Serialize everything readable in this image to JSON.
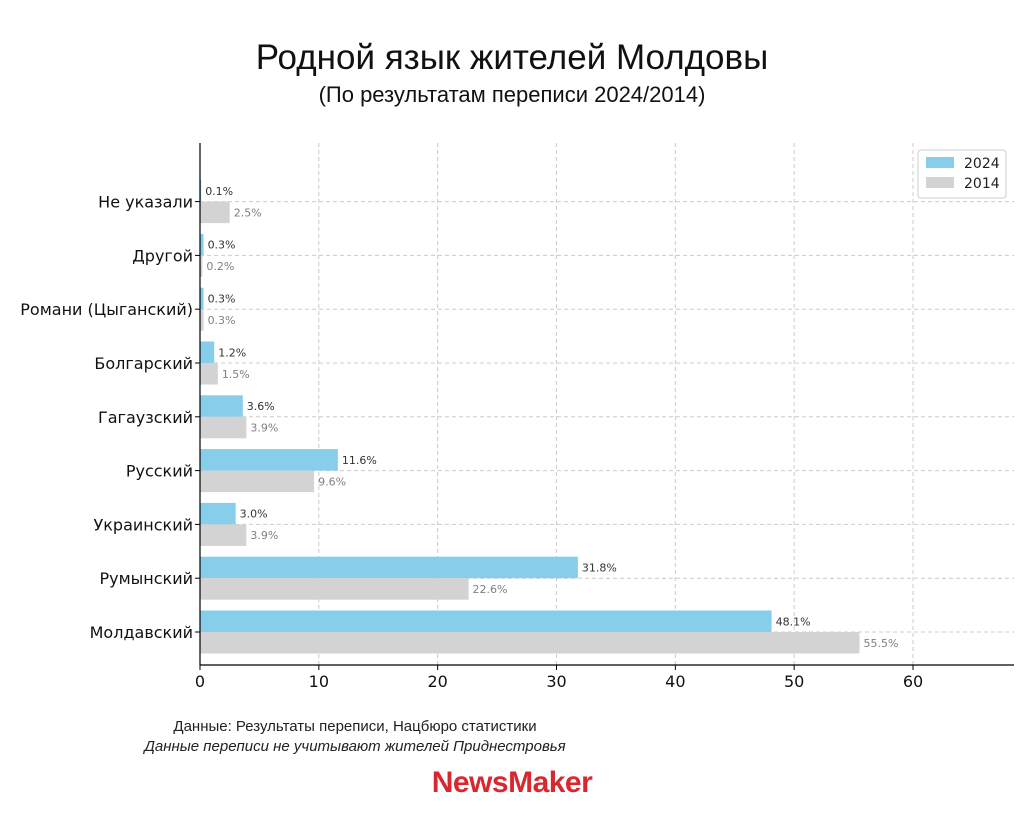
{
  "header": {
    "title": "Родной язык жителей Молдовы",
    "subtitle": "(По результатам переписи 2024/2014)"
  },
  "chart_data": {
    "type": "bar",
    "orientation": "horizontal",
    "categories": [
      "Не указали",
      "Другой",
      "Романи (Цыганский)",
      "Болгарский",
      "Гагаузский",
      "Русский",
      "Украинский",
      "Румынский",
      "Молдавский"
    ],
    "series": [
      {
        "name": "2024",
        "values": [
          0.1,
          0.3,
          0.3,
          1.2,
          3.6,
          11.6,
          3.0,
          31.8,
          48.1
        ],
        "labels": [
          "0.1%",
          "0.3%",
          "0.3%",
          "1.2%",
          "3.6%",
          "11.6%",
          "3.0%",
          "31.8%",
          "48.1%"
        ],
        "color": "#87ceeb",
        "label_color": "#333333"
      },
      {
        "name": "2014",
        "values": [
          2.5,
          0.2,
          0.3,
          1.5,
          3.9,
          9.6,
          3.9,
          22.6,
          55.5
        ],
        "labels": [
          "2.5%",
          "0.2%",
          "0.3%",
          "1.5%",
          "3.9%",
          "9.6%",
          "3.9%",
          "22.6%",
          "55.5%"
        ],
        "color": "#d3d3d3",
        "label_color": "#808080"
      }
    ],
    "xlim": [
      0,
      68.5
    ],
    "xticks": [
      0,
      10,
      20,
      30,
      40,
      50,
      60
    ],
    "xtick_labels": [
      "0",
      "10",
      "20",
      "30",
      "40",
      "50",
      "60"
    ],
    "grid": true,
    "legend_position": "top-right"
  },
  "footer": {
    "source_line": "Данные: Результаты переписи, Нацбюро статистики",
    "note_line": "Данные переписи не учитывают жителей Приднестровья",
    "brand": "NewsMaker"
  }
}
